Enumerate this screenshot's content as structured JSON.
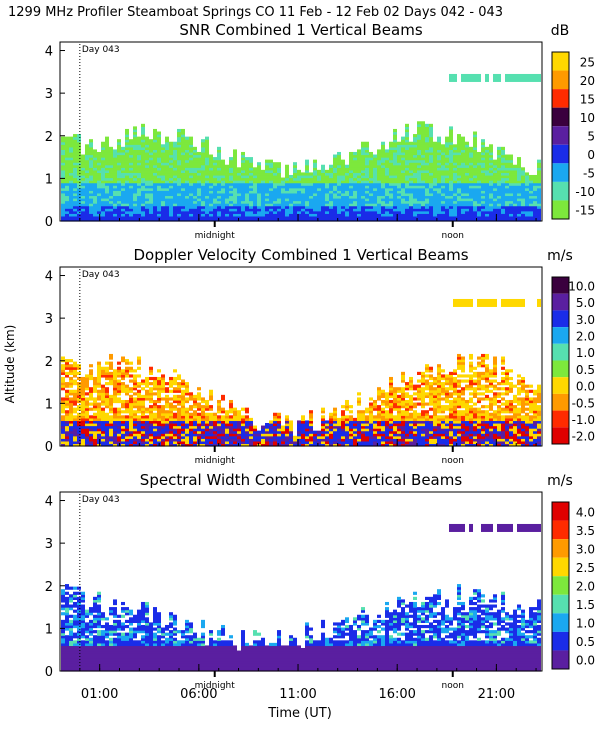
{
  "header": "1299 MHz Profiler  Steamboat Springs CO  11 Feb - 12 Feb 02 Days 042 - 043",
  "shared": {
    "xlabel": "Time (UT)",
    "ylabel": "Altitude (km)",
    "x_ticks": [
      "01:00",
      "06:00",
      "11:00",
      "16:00",
      "21:00"
    ],
    "x_tick_hours": [
      1,
      6,
      11,
      16,
      21
    ],
    "x_range_hours": [
      -1,
      23.3
    ],
    "y_ticks": [
      "0",
      "1",
      "2",
      "3",
      "4"
    ],
    "y_range_km": [
      0,
      4.2
    ],
    "markers": [
      {
        "label": "midnight",
        "hour": 6.8
      },
      {
        "label": "noon",
        "hour": 18.8
      }
    ],
    "day_marker": {
      "label": "Day 043",
      "hour": 0
    }
  },
  "chart_data": [
    {
      "type": "heatmap",
      "title": "SNR Combined 1 Vertical Beams",
      "unit": "dB",
      "colorbar_labels": [
        "25",
        "20",
        "15",
        "10",
        "5",
        "0",
        "-5",
        "-10",
        "-15"
      ],
      "colorbar_colors": [
        "#ffd800",
        "#ff9a00",
        "#ff2b00",
        "#3a003e",
        "#5a1fa0",
        "#1a2ce8",
        "#1aa8f0",
        "#56e0b0",
        "#7de83c"
      ],
      "layers": [
        {
          "name": "near-surface band",
          "alt_top_km": 0.15,
          "dominant_db": 5
        },
        {
          "name": "mid band",
          "alt_top_km": 0.9,
          "dominant_db": -5
        },
        {
          "name": "upper band",
          "alt_top_km": 1.8,
          "dominant_db": -15
        },
        {
          "name": "top echoes",
          "alt_range_km": [
            3.2,
            3.6
          ],
          "dominant_db": -10
        }
      ]
    },
    {
      "type": "heatmap",
      "title": "Doppler Velocity Combined 1 Vertical Beams",
      "unit": "m/s",
      "colorbar_labels": [
        "10.0",
        "5.0",
        "3.0",
        "2.0",
        "1.0",
        "0.5",
        "0.0",
        "-0.5",
        "-1.0",
        "-2.0"
      ],
      "colorbar_colors": [
        "#3a003e",
        "#5a1fa0",
        "#1a2ce8",
        "#1aa8f0",
        "#56e0b0",
        "#7de83c",
        "#ffd800",
        "#ff9a00",
        "#ff2b00",
        "#e00000"
      ],
      "layers": [
        {
          "name": "near-surface band",
          "alt_top_km": 0.6,
          "dominant_ms": 2.0
        },
        {
          "name": "upper band",
          "alt_top_km": 1.9,
          "dominant_ms": -0.5
        },
        {
          "name": "top echoes",
          "alt_range_km": [
            3.2,
            3.5
          ],
          "dominant_ms": 0.0
        }
      ]
    },
    {
      "type": "heatmap",
      "title": "Spectral Width Combined 1 Vertical Beams",
      "unit": "m/s",
      "colorbar_labels": [
        "4.0",
        "3.5",
        "3.0",
        "2.5",
        "2.0",
        "1.5",
        "1.0",
        "0.5",
        "0.0"
      ],
      "colorbar_colors": [
        "#e00000",
        "#ff2b00",
        "#ff9a00",
        "#ffd800",
        "#7de83c",
        "#56e0b0",
        "#1aa8f0",
        "#1a2ce8",
        "#5a1fa0"
      ],
      "layers": [
        {
          "name": "near-surface band",
          "alt_top_km": 0.6,
          "dominant_ms": 0.0
        },
        {
          "name": "upper band",
          "alt_top_km": 1.7,
          "dominant_ms": 0.5
        },
        {
          "name": "top echoes",
          "alt_range_km": [
            3.3,
            3.5
          ],
          "dominant_ms": 0.0
        }
      ]
    }
  ]
}
